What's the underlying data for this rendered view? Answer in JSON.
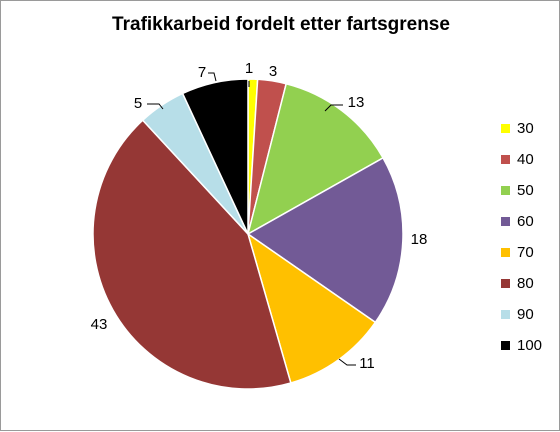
{
  "chart_data": {
    "type": "pie",
    "title": "Trafikkarbeid fordelt etter fartsgrense",
    "legend_position": "right",
    "slices": [
      {
        "label": "30",
        "value": 1,
        "color": "#FFFF00"
      },
      {
        "label": "40",
        "value": 3,
        "color": "#C0504D"
      },
      {
        "label": "50",
        "value": 13,
        "color": "#92D050"
      },
      {
        "label": "60",
        "value": 18,
        "color": "#725A96"
      },
      {
        "label": "70",
        "value": 11,
        "color": "#FFC000"
      },
      {
        "label": "80",
        "value": 43,
        "color": "#953735"
      },
      {
        "label": "90",
        "value": 5,
        "color": "#B7DEE8"
      },
      {
        "label": "100",
        "value": 7,
        "color": "#000000"
      }
    ]
  }
}
